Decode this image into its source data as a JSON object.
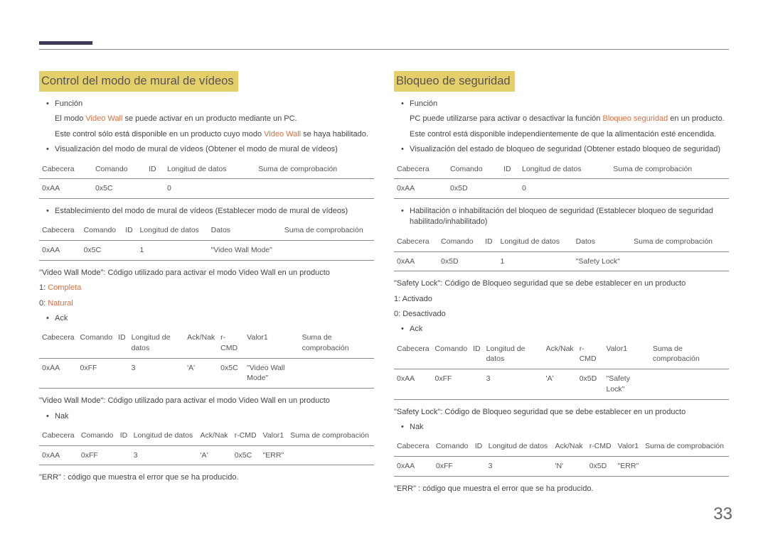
{
  "pageNumber": "33",
  "left": {
    "heading": "Control del modo de mural de vídeos",
    "funcTitle": "Función",
    "funcLine1a": "El modo ",
    "funcLine1b": "Video Wall",
    "funcLine1c": " se puede activar en un producto mediante un PC.",
    "funcLine2a": "Este control sólo está disponible en un producto cuyo modo ",
    "funcLine2b": "Video Wall",
    "funcLine2c": " se haya habilitado.",
    "viewTitle": "Visualización del modo de mural de vídeos (Obtener el modo de mural de vídeos)",
    "t1": {
      "h": [
        "Cabecera",
        "Comando",
        "ID",
        "Longitud de datos",
        "Suma de comprobación"
      ],
      "r": [
        "0xAA",
        "0x5C",
        "",
        "0",
        ""
      ]
    },
    "setTitle": "Establecimiento del modo de mural de vídeos (Establecer modo de mural de vídeos)",
    "t2": {
      "h": [
        "Cabecera",
        "Comando",
        "ID",
        "Longitud de datos",
        "Datos",
        "Suma de comprobación"
      ],
      "r": [
        "0xAA",
        "0x5C",
        "",
        "1",
        "\"Video Wall Mode\"",
        ""
      ]
    },
    "desc1": "\"Video Wall Mode\": Código utilizado para activar el modo Video Wall en un producto",
    "opt1a": "1: ",
    "opt1b": "Completa",
    "opt2a": "0: ",
    "opt2b": "Natural",
    "ackTitle": "Ack",
    "t3": {
      "h": [
        "Cabecera",
        "Comando",
        "ID",
        "Longitud de datos",
        "Ack/Nak",
        "r-CMD",
        "Valor1",
        "Suma de comprobación"
      ],
      "r": [
        "0xAA",
        "0xFF",
        "",
        "3",
        "'A'",
        "0x5C",
        "\"Video Wall Mode\"",
        ""
      ]
    },
    "desc2": "\"Video Wall Mode\": Código utilizado para activar el modo Video Wall en un producto",
    "nakTitle": "Nak",
    "t4": {
      "h": [
        "Cabecera",
        "Comando",
        "ID",
        "Longitud de datos",
        "Ack/Nak",
        "r-CMD",
        "Valor1",
        "Suma de comprobación"
      ],
      "r": [
        "0xAA",
        "0xFF",
        "",
        "3",
        "'A'",
        "0x5C",
        "\"ERR\"",
        ""
      ]
    },
    "errNote": "\"ERR\" : código que muestra el error que se ha producido."
  },
  "right": {
    "heading": "Bloqueo de seguridad",
    "funcTitle": "Función",
    "funcLine1a": "PC puede utilizarse para activar o desactivar la función ",
    "funcLine1b": "Bloqueo seguridad",
    "funcLine1c": " en un producto.",
    "funcLine2": "Este control está disponible independientemente de que la alimentación esté encendida.",
    "viewTitle": "Visualización del estado de bloqueo de seguridad (Obtener estado bloqueo de seguridad)",
    "t1": {
      "h": [
        "Cabecera",
        "Comando",
        "ID",
        "Longitud de datos",
        "Suma de comprobación"
      ],
      "r": [
        "0xAA",
        "0x5D",
        "",
        "0",
        ""
      ]
    },
    "setTitle": "Habilitación o inhabilitación del bloqueo de seguridad (Establecer bloqueo de seguridad habilitado/inhabilitado)",
    "t2": {
      "h": [
        "Cabecera",
        "Comando",
        "ID",
        "Longitud de datos",
        "Datos",
        "Suma de comprobación"
      ],
      "r": [
        "0xAA",
        "0x5D",
        "",
        "1",
        "\"Safety Lock\"",
        ""
      ]
    },
    "desc1": "\"Safety Lock\": Código de Bloqueo seguridad que se debe establecer en un producto",
    "opt1": "1: Activado",
    "opt2": "0: Desactivado",
    "ackTitle": "Ack",
    "t3": {
      "h": [
        "Cabecera",
        "Comando",
        "ID",
        "Longitud de datos",
        "Ack/Nak",
        "r-CMD",
        "Valor1",
        "Suma de comprobación"
      ],
      "r": [
        "0xAA",
        "0xFF",
        "",
        "3",
        "'A'",
        "0x5D",
        "\"Safety Lock\"",
        ""
      ]
    },
    "desc2": "\"Safety Lock\": Código de Bloqueo seguridad que se debe establecer en un producto",
    "nakTitle": "Nak",
    "t4": {
      "h": [
        "Cabecera",
        "Comando",
        "ID",
        "Longitud de datos",
        "Ack/Nak",
        "r-CMD",
        "Valor1",
        "Suma de comprobación"
      ],
      "r": [
        "0xAA",
        "0xFF",
        "",
        "3",
        "'N'",
        "0x5D",
        "\"ERR\"",
        ""
      ]
    },
    "errNote": "\"ERR\" : código que muestra el error que se ha producido."
  }
}
